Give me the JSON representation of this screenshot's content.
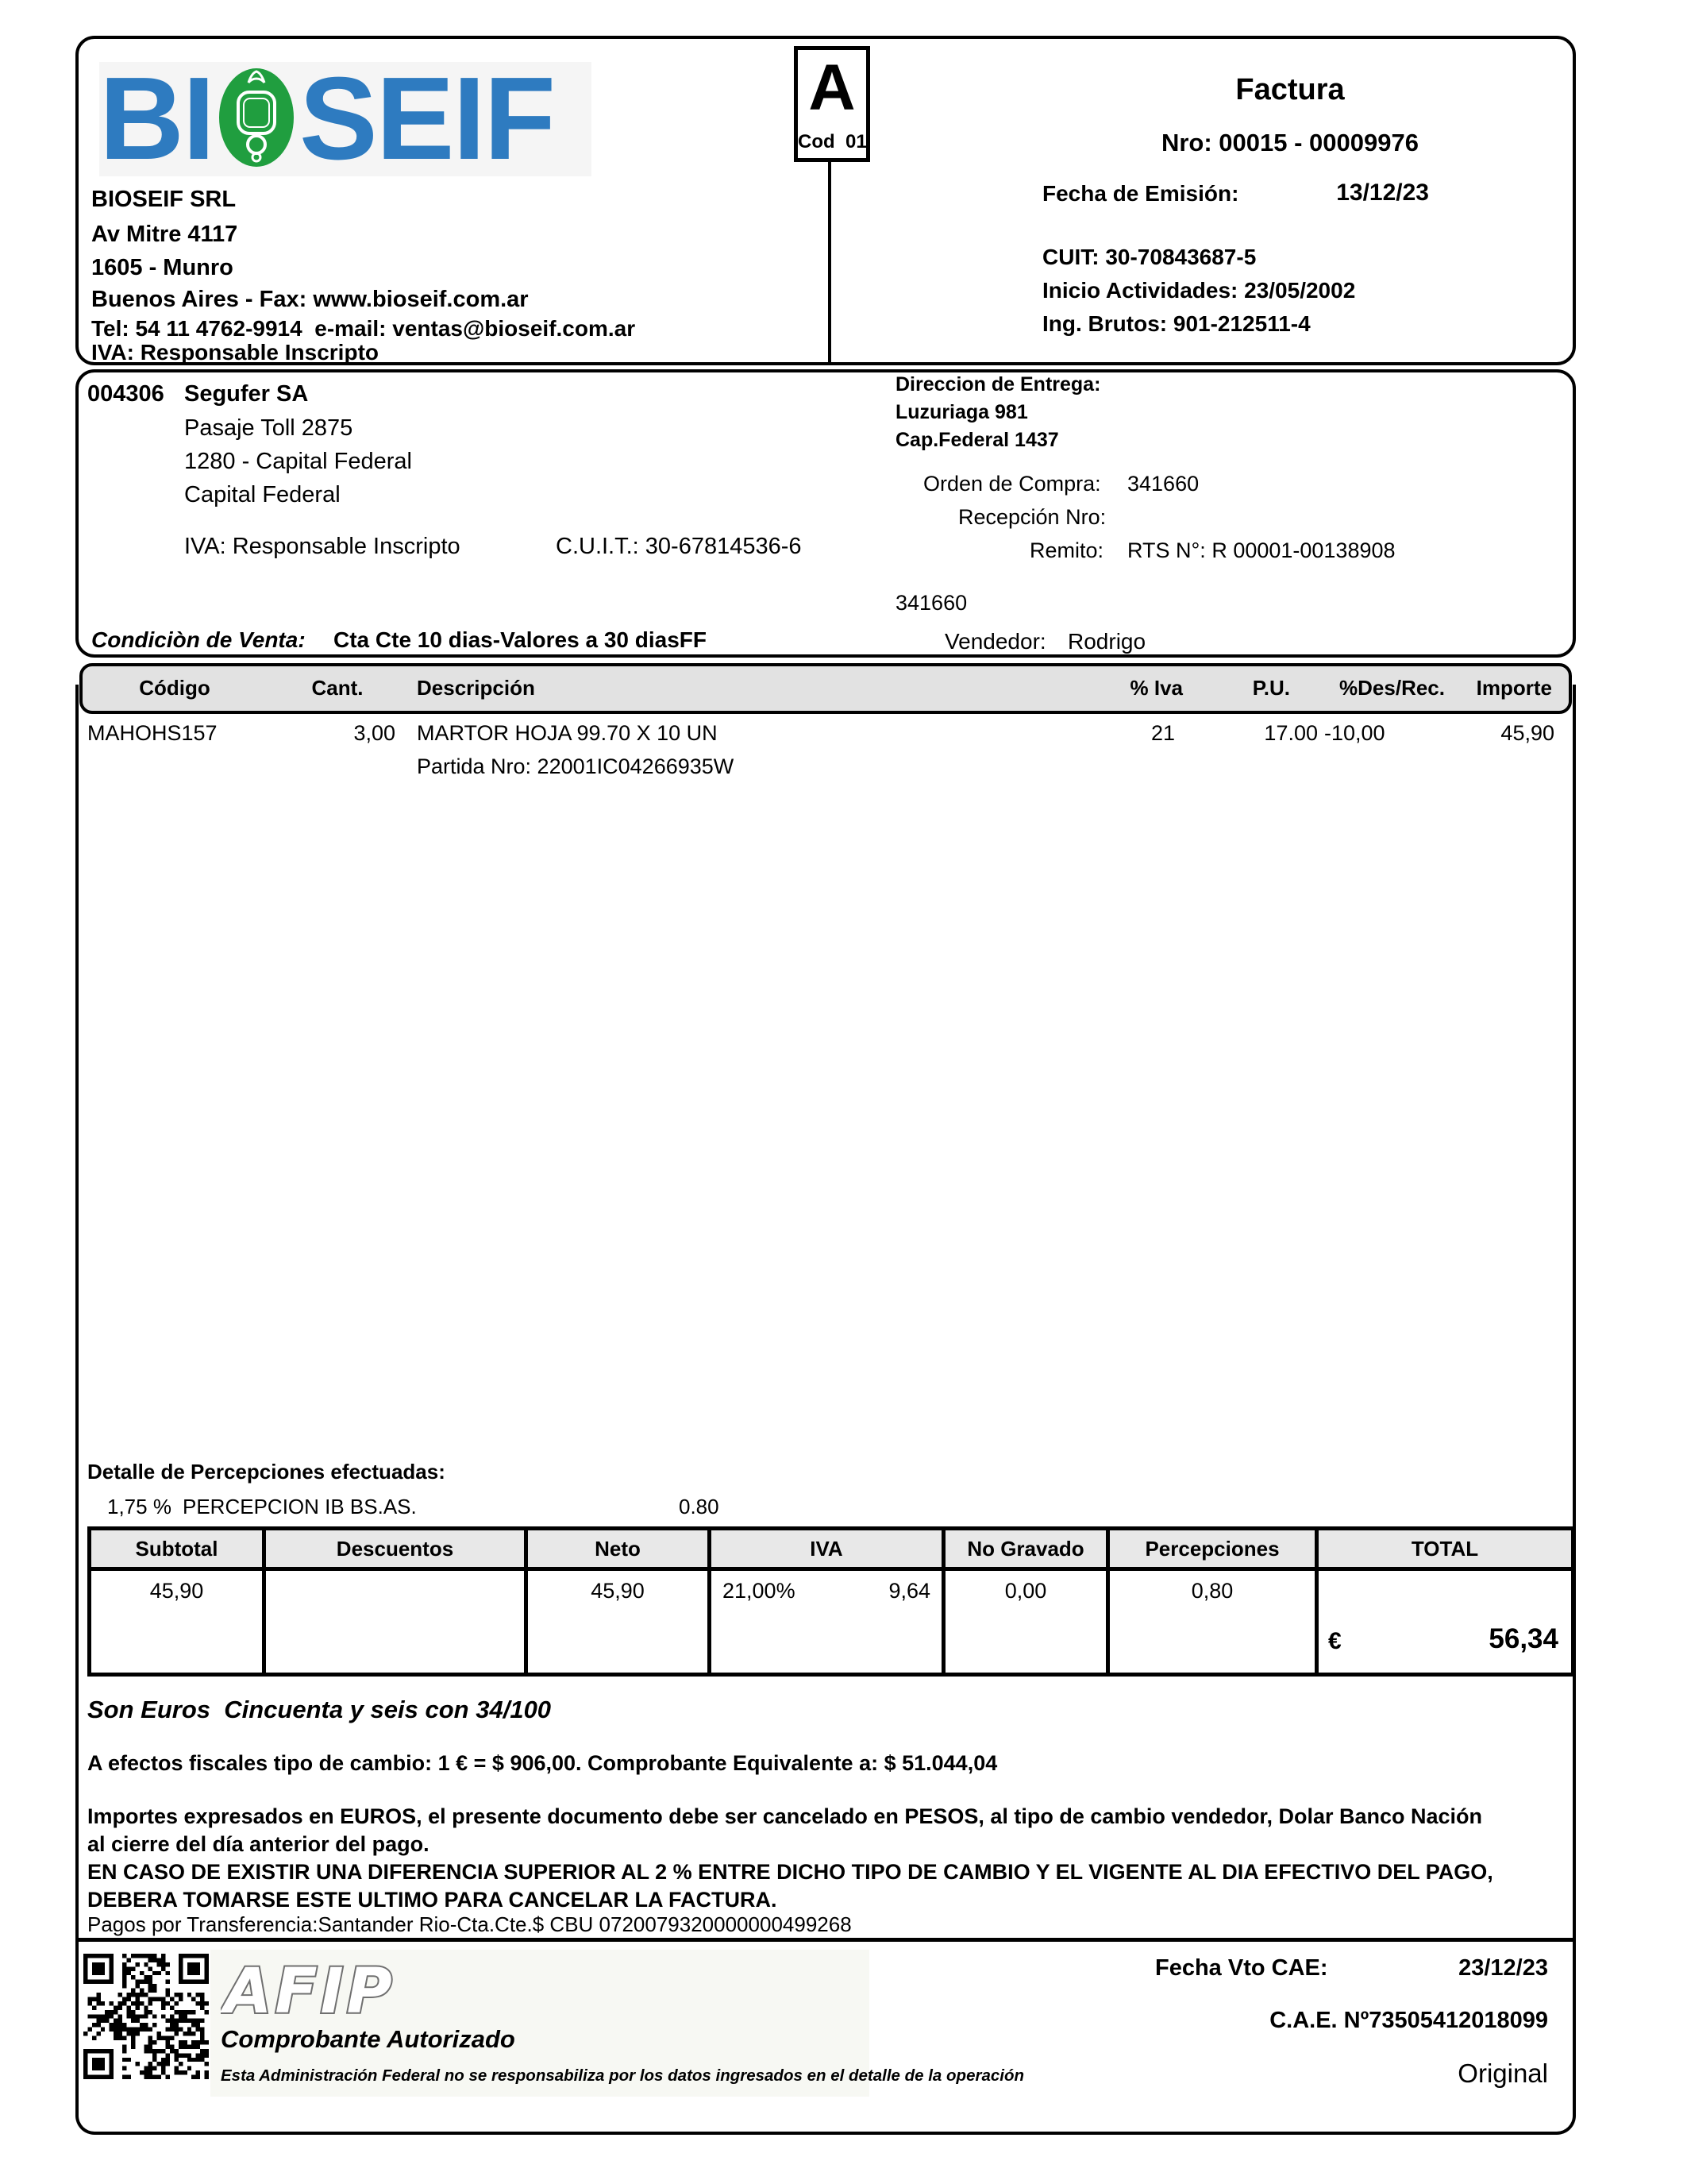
{
  "seller": {
    "logo_left": "BI",
    "logo_right": "SEIF",
    "name": "BIOSEIF SRL",
    "address": "Av Mitre 4117",
    "city": "1605 - Munro",
    "province_fax": "Buenos Aires - Fax: www.bioseif.com.ar",
    "tel_email": "Tel: 54 11 4762-9914  e-mail: ventas@bioseif.com.ar",
    "iva": "IVA: Responsable Inscripto"
  },
  "invoice": {
    "letter": "A",
    "letter_code": "Cod  01",
    "doc_type": "Factura",
    "number": "Nro: 00015 - 00009976",
    "emission_label": "Fecha de Emisión:",
    "emission_date": "13/12/23",
    "cuit": "CUIT: 30-70843687-5",
    "activity_start": "Inicio Actividades: 23/05/2002",
    "gross_income": "Ing. Brutos: 901-212511-4"
  },
  "customer": {
    "code": "004306",
    "name": "Segufer SA",
    "address": "Pasaje Toll 2875",
    "zip_city": "1280 - Capital Federal",
    "province": "Capital Federal",
    "iva": "IVA: Responsable Inscripto",
    "cuit": "C.U.I.T.: 30-67814536-6",
    "delivery_title": "Direccion de Entrega:",
    "delivery_address": "Luzuriaga 981",
    "delivery_city": "Cap.Federal 1437",
    "purchase_order_label": "Orden de Compra:",
    "purchase_order": "341660",
    "reception_label": "Recepción Nro:",
    "remito_label": "Remito:",
    "remito": "RTS N°: R 00001-00138908",
    "order_ref": "341660",
    "salesman_label": "Vendedor:",
    "salesman": "Rodrigo",
    "sale_condition_label": "Condiciòn de Venta:",
    "sale_condition": "Cta Cte 10 dias-Valores a 30 diasFF"
  },
  "items_table": {
    "columns": [
      "Código",
      "Cant.",
      "Descripción",
      "% Iva",
      "P.U.",
      "%Des/Rec.",
      "Importe"
    ],
    "rows": [
      {
        "codigo": "MAHOHS157",
        "cant": "3,00",
        "descripcion": "MARTOR HOJA 99.70 X 10 UN",
        "descripcion2": "Partida Nro: 22001IC04266935W",
        "iva": "21",
        "pu": "17.00",
        "desrec": "-10,00",
        "importe": "45,90"
      }
    ]
  },
  "percepciones": {
    "title": "Detalle de Percepciones efectuadas:",
    "rate": "1,75 %",
    "concept": "PERCEPCION IB BS.AS.",
    "amount": "0.80"
  },
  "totals": {
    "headers": [
      "Subtotal",
      "Descuentos",
      "Neto",
      "IVA",
      "No Gravado",
      "Percepciones",
      "TOTAL"
    ],
    "subtotal": "45,90",
    "descuentos": "",
    "neto": "45,90",
    "iva_rate": "21,00%",
    "iva_amount": "9,64",
    "no_gravado": "0,00",
    "percepciones": "0,80",
    "currency": "€",
    "total": "56,34"
  },
  "notes": {
    "amount_words": "Son Euros  Cincuenta y seis con 34/100",
    "fx_note": "A efectos fiscales tipo de cambio: 1 € = $ 906,00. Comprobante Equivalente a: $ 51.044,04",
    "legal1": "Importes expresados en EUROS, el presente documento debe ser cancelado en PESOS, al tipo de cambio vendedor, Dolar Banco Nación",
    "legal2": "al cierre del día anterior del pago.",
    "legal3": "EN CASO DE EXISTIR UNA DIFERENCIA SUPERIOR AL 2 % ENTRE DICHO TIPO DE CAMBIO Y EL VIGENTE AL DIA EFECTIVO DEL PAGO,",
    "legal4": "DEBERA TOMARSE ESTE ULTIMO PARA CANCELAR LA FACTURA.",
    "payment": "Pagos por Transferencia:Santander Rio-Cta.Cte.$ CBU 0720079320000000499268"
  },
  "footer": {
    "afip": "AFIP",
    "authorized": "Comprobante Autorizado",
    "disclaimer": "Esta Administración Federal no se responsabiliza por los datos ingresados en el detalle de la operación",
    "cae_due_label": "Fecha Vto CAE:",
    "cae_due": "23/12/23",
    "cae_number": "C.A.E. Nº73505412018099",
    "copy_type": "Original"
  },
  "colors": {
    "logo_blue": "#2e7bc0",
    "logo_green": "#209e3f",
    "afip_gray": "#6f6f6f",
    "items_header_bg": "#e2e2e2",
    "totals_header_bg": "#e8e8e8"
  }
}
